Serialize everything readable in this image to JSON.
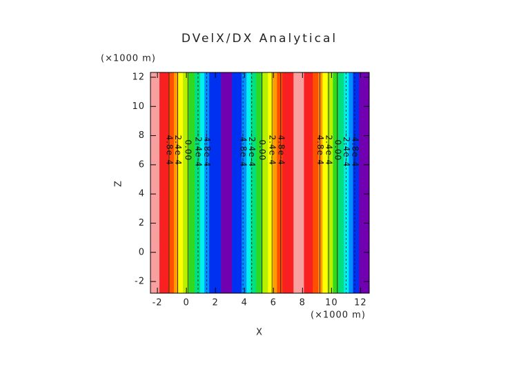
{
  "chart_data": {
    "type": "contour",
    "title": "DVelX/DX Analytical",
    "x_label": "X",
    "y_label": "Z",
    "x_unit": "(×1000 m)",
    "y_unit": "(×1000 m)",
    "xlim": [
      -2.48,
      12.6
    ],
    "ylim": [
      -2.8,
      12.33
    ],
    "xticks": [
      -2,
      0,
      2,
      4,
      6,
      8,
      10,
      12
    ],
    "yticks": [
      -2,
      0,
      2,
      4,
      6,
      8,
      10,
      12
    ],
    "stripes": {
      "edges": [
        -2.48,
        -1.86,
        -1.24,
        -0.86,
        -0.57,
        -0.24,
        0.14,
        0.57,
        0.95,
        1.24,
        1.57,
        2.38,
        3.14,
        3.81,
        4.14,
        4.43,
        4.81,
        5.24,
        5.62,
        5.95,
        6.24,
        6.62,
        7.38,
        8.1,
        8.71,
        9.1,
        9.38,
        9.71,
        10.1,
        10.48,
        10.86,
        11.19,
        11.48,
        11.9,
        12.6
      ],
      "colors": [
        "#f8a0a0",
        "#f82020",
        "#ff5000",
        "#ff9a00",
        "#ffff00",
        "#b8f000",
        "#30d820",
        "#00e080",
        "#00f0f0",
        "#0090ff",
        "#0030f0",
        "#7000b0",
        "#0030f0",
        "#0090ff",
        "#00f0f0",
        "#00e080",
        "#30d820",
        "#b8f000",
        "#ffff00",
        "#ff9a00",
        "#ff5000",
        "#f82020",
        "#f8a0a0",
        "#f82020",
        "#ff5000",
        "#ff9a00",
        "#ffff00",
        "#b8f000",
        "#30d820",
        "#00e080",
        "#00f0f0",
        "#0090ff",
        "#0030f0",
        "#7000b0"
      ]
    },
    "contour_label_y": 7,
    "contour_lines": [
      {
        "x": -1.2,
        "label": "4.8e-4",
        "dashed": false
      },
      {
        "x": -0.6,
        "label": "2.4e-4",
        "dashed": false
      },
      {
        "x": 0.1,
        "label": "0.00",
        "dashed": false
      },
      {
        "x": 0.8,
        "label": "-2.4e-4",
        "dashed": true
      },
      {
        "x": 1.4,
        "label": "-4.8e-4",
        "dashed": true
      },
      {
        "x": 3.9,
        "label": "-4.8e-4",
        "dashed": true
      },
      {
        "x": 4.5,
        "label": "-2.4e-4",
        "dashed": true
      },
      {
        "x": 5.2,
        "label": "0.00",
        "dashed": false
      },
      {
        "x": 5.9,
        "label": "2.4e-4",
        "dashed": false
      },
      {
        "x": 6.5,
        "label": "4.8e-4",
        "dashed": false
      },
      {
        "x": 9.2,
        "label": "4.8e-4",
        "dashed": false
      },
      {
        "x": 9.8,
        "label": "2.4e-4",
        "dashed": false
      },
      {
        "x": 10.4,
        "label": "0.00",
        "dashed": false
      },
      {
        "x": 11.0,
        "label": "-2.4e-4",
        "dashed": true
      },
      {
        "x": 11.6,
        "label": "-4.8e-4",
        "dashed": true
      }
    ]
  }
}
